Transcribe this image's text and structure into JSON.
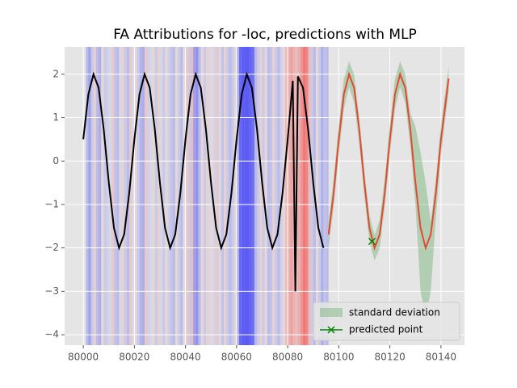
{
  "chart_data": {
    "type": "line",
    "title": "FA Attributions for -loc, predictions with MLP",
    "xlim": [
      79992.7,
      80149.2
    ],
    "ylim": [
      -4.24,
      2.63
    ],
    "xticks": [
      80000,
      80020,
      80040,
      80060,
      80080,
      80100,
      80120,
      80140
    ],
    "yticks": [
      {
        "value": -4,
        "label": "−4"
      },
      {
        "value": -3,
        "label": "−3"
      },
      {
        "value": -2,
        "label": "−2"
      },
      {
        "value": -1,
        "label": "−1"
      },
      0,
      1,
      2
    ],
    "grid": true,
    "legend": "lower right",
    "attributions": {
      "colors": [
        "#0000ff",
        "#ff0000"
      ],
      "x": [
        80000,
        80001,
        80002,
        80003,
        80004,
        80005,
        80006,
        80007,
        80008,
        80009,
        80010,
        80011,
        80012,
        80013,
        80014,
        80015,
        80016,
        80017,
        80018,
        80019,
        80020,
        80021,
        80022,
        80023,
        80024,
        80025,
        80026,
        80027,
        80028,
        80029,
        80030,
        80031,
        80032,
        80033,
        80034,
        80035,
        80036,
        80037,
        80038,
        80039,
        80040,
        80041,
        80042,
        80043,
        80044,
        80045,
        80046,
        80047,
        80048,
        80049,
        80050,
        80051,
        80052,
        80053,
        80054,
        80055,
        80056,
        80057,
        80058,
        80059,
        80060,
        80061,
        80062,
        80063,
        80064,
        80065,
        80066,
        80067,
        80068,
        80069,
        80070,
        80071,
        80072,
        80073,
        80074,
        80075,
        80076,
        80077,
        80078,
        80079,
        80080,
        80081,
        80082,
        80083,
        80084,
        80085,
        80086,
        80087,
        80088,
        80089,
        80090,
        80091,
        80092,
        80093,
        80094,
        80095
      ],
      "values": [
        0,
        -0.3,
        -0.5,
        -0.2,
        0.15,
        -0.3,
        -0.4,
        0.1,
        -0.2,
        -0.15,
        -0.1,
        0.2,
        -0.25,
        -0.3,
        -0.1,
        0.15,
        -0.2,
        -0.3,
        0.2,
        -0.1,
        0.1,
        -0.2,
        -0.35,
        -0.4,
        0.2,
        -0.15,
        -0.1,
        0.1,
        -0.2,
        0.15,
        -0.1,
        -0.2,
        0.1,
        -0.15,
        -0.25,
        -0.3,
        0.1,
        -0.2,
        -0.3,
        0.05,
        0.2,
        -0.2,
        0.3,
        -0.5,
        -0.6,
        -0.3,
        0.1,
        -0.2,
        0.15,
        -0.1,
        0.1,
        -0.15,
        0.2,
        -0.1,
        -0.25,
        0.15,
        -0.2,
        -0.3,
        -0.2,
        0.1,
        -0.4,
        -0.9,
        -1,
        -1,
        -1,
        -0.95,
        -0.85,
        -0.3,
        -0.2,
        0.15,
        -0.2,
        0.1,
        -0.3,
        -0.25,
        0.15,
        -0.2,
        -0.3,
        -0.15,
        0.1,
        0.3,
        0.4,
        0.5,
        0.35,
        0.3,
        0.4,
        0.6,
        0.8,
        0.7,
        0.3,
        -0.2,
        -0.3,
        0.1,
        -0.2,
        -0.4,
        -0.25,
        -0.3
      ]
    },
    "series": [
      {
        "color": "#000000",
        "x": [
          80000,
          80002,
          80004,
          80006,
          80008,
          80010,
          80012,
          80014,
          80016,
          80018,
          80020,
          80022,
          80024,
          80026,
          80028,
          80030,
          80032,
          80034,
          80036,
          80038,
          80040,
          80042,
          80044,
          80046,
          80048,
          80050,
          80052,
          80054,
          80056,
          80058,
          80060,
          80062,
          80064,
          80066,
          80068,
          80070,
          80072,
          80074,
          80076,
          80078,
          80080,
          80082,
          80083,
          80084,
          80086,
          80088,
          80090,
          80092,
          80094
        ],
        "values": [
          0.5,
          1.54,
          2.0,
          1.69,
          0.73,
          -0.5,
          -1.54,
          -2.0,
          -1.69,
          -0.73,
          0.5,
          1.54,
          2.0,
          1.69,
          0.73,
          -0.5,
          -1.54,
          -2.0,
          -1.69,
          -0.73,
          0.5,
          1.54,
          2.0,
          1.69,
          0.73,
          -0.5,
          -1.54,
          -2.0,
          -1.69,
          -0.73,
          0.5,
          1.54,
          2.0,
          1.69,
          0.73,
          -0.5,
          -1.54,
          -2.0,
          -1.69,
          -0.73,
          0.5,
          1.85,
          -3.0,
          1.95,
          1.69,
          0.73,
          -0.5,
          -1.54,
          -2.0
        ]
      },
      {
        "color": "#e24a33",
        "x": [
          80096,
          80098,
          80100,
          80102,
          80104,
          80106,
          80108,
          80110,
          80112,
          80114,
          80116,
          80118,
          80120,
          80122,
          80124,
          80126,
          80128,
          80130,
          80132,
          80134,
          80136,
          80138,
          80140,
          80143
        ],
        "values": [
          -1.69,
          -0.73,
          0.5,
          1.54,
          2.0,
          1.69,
          0.73,
          -0.5,
          -1.54,
          -2.0,
          -1.69,
          -0.73,
          0.5,
          1.54,
          2.0,
          1.69,
          0.73,
          -0.5,
          -1.54,
          -2.0,
          -1.69,
          -0.73,
          0.5,
          1.9
        ]
      }
    ],
    "band": {
      "name": "standard deviation",
      "color": "green",
      "x": [
        80096,
        80098,
        80100,
        80102,
        80104,
        80106,
        80108,
        80110,
        80112,
        80114,
        80116,
        80118,
        80120,
        80122,
        80124,
        80126,
        80128,
        80130,
        80132,
        80134,
        80136,
        80138,
        80140,
        80143
      ],
      "upper": [
        -1.4,
        -0.4,
        0.85,
        1.9,
        2.3,
        2.0,
        1.0,
        -0.2,
        -1.25,
        -1.7,
        -1.35,
        -0.4,
        0.85,
        1.9,
        2.3,
        2.0,
        1.1,
        0.8,
        0.2,
        -0.5,
        -1.4,
        -0.4,
        0.85,
        2.2
      ],
      "lower": [
        -2.0,
        -1.05,
        0.15,
        1.2,
        1.7,
        1.35,
        0.4,
        -0.8,
        -1.85,
        -2.3,
        -2.0,
        -1.05,
        0.15,
        1.2,
        1.7,
        1.35,
        0.35,
        -1.0,
        -3.0,
        -3.6,
        -3.0,
        -1.3,
        0.15,
        1.6
      ]
    },
    "point": {
      "name": "predicted point",
      "color": "green",
      "x": 80113,
      "y": -1.85
    }
  }
}
